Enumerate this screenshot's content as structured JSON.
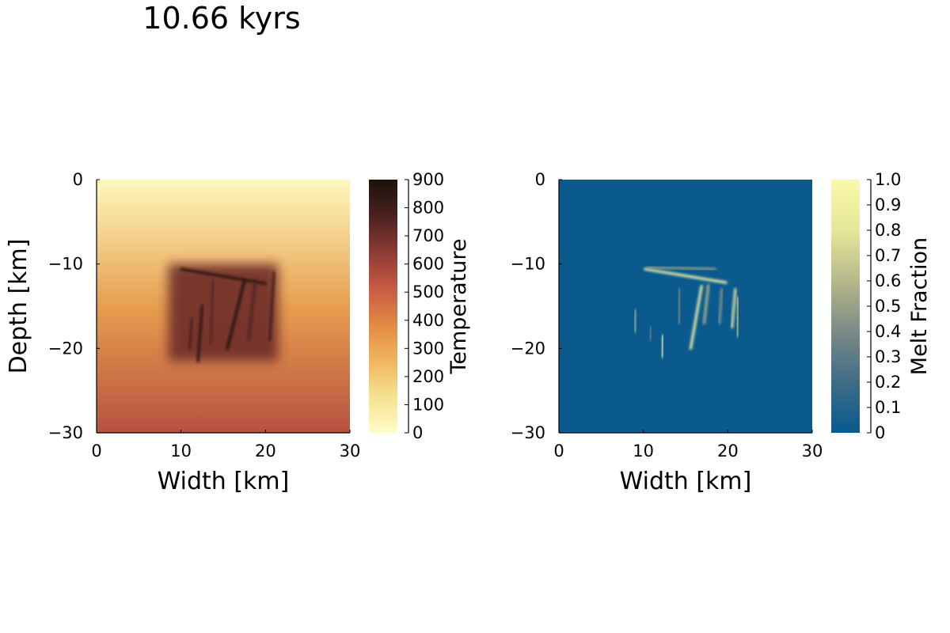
{
  "figure_title": "10.66 kyrs",
  "colors": {
    "temperature_scale": [
      "#fffdc6",
      "#f6e190",
      "#efb55c",
      "#e08a44",
      "#c85a44",
      "#8c3b34",
      "#4a2121",
      "#1b1209"
    ],
    "melt_scale": [
      "#0a5a8e",
      "#3f6c86",
      "#7b8a86",
      "#b5b88a",
      "#e6e79a",
      "#fbf8a8"
    ],
    "melt_background": "#0a5a8e"
  },
  "chart_data": [
    {
      "type": "heatmap",
      "name": "temperature",
      "xlabel": "Width [km]",
      "ylabel": "Depth [km]",
      "xlim": [
        0,
        30
      ],
      "ylim": [
        -30,
        0
      ],
      "xticks": [
        0,
        10,
        20,
        30
      ],
      "xtick_labels": [
        "0",
        "10",
        "20",
        "30"
      ],
      "yticks": [
        0,
        -10,
        -20,
        -30
      ],
      "ytick_labels": [
        "0",
        "−10",
        "−20",
        "−30"
      ],
      "colorbar": {
        "label": "Temperature",
        "range": [
          0,
          900
        ],
        "ticks": [
          0,
          100,
          200,
          300,
          400,
          500,
          600,
          700,
          800,
          900
        ],
        "tick_labels": [
          "0",
          "100",
          "200",
          "300",
          "400",
          "500",
          "600",
          "700",
          "800",
          "900"
        ]
      },
      "background_gradient": [
        {
          "depth": 0,
          "value": 20
        },
        {
          "depth": -30,
          "value": 550
        }
      ],
      "hot_region": {
        "x": [
          8.5,
          21.5
        ],
        "depth": [
          -10,
          -21.5
        ],
        "value": 700
      },
      "dikes": [
        {
          "x1": 9.5,
          "d1": -10.3,
          "x2": 20.5,
          "d2": -10.3,
          "value": 820
        },
        {
          "x1": 10,
          "d1": -10.6,
          "x2": 20,
          "d2": -12.3,
          "value": 870
        },
        {
          "x1": 15.5,
          "d1": -20,
          "x2": 17.5,
          "d2": -12,
          "value": 900
        },
        {
          "x1": 12,
          "d1": -21.5,
          "x2": 12.5,
          "d2": -15,
          "value": 850
        },
        {
          "x1": 11,
          "d1": -20,
          "x2": 11.3,
          "d2": -16.5,
          "value": 780
        },
        {
          "x1": 20.5,
          "d1": -19,
          "x2": 21,
          "d2": -11,
          "value": 800
        },
        {
          "x1": 18,
          "d1": -19,
          "x2": 18.8,
          "d2": -12,
          "value": 760
        },
        {
          "x1": 13.5,
          "d1": -19.5,
          "x2": 13.8,
          "d2": -12,
          "value": 740
        }
      ]
    },
    {
      "type": "heatmap",
      "name": "melt_fraction",
      "xlabel": "Width [km]",
      "ylabel": "",
      "xlim": [
        0,
        30
      ],
      "ylim": [
        -30,
        0
      ],
      "xticks": [
        0,
        10,
        20,
        30
      ],
      "xtick_labels": [
        "0",
        "10",
        "20",
        "30"
      ],
      "yticks": [
        0,
        -10,
        -20,
        -30
      ],
      "ytick_labels": [
        "0",
        "−10",
        "−20",
        "−30"
      ],
      "colorbar": {
        "label": "Melt Fraction",
        "range": [
          0,
          1
        ],
        "ticks": [
          0,
          0.1,
          0.2,
          0.3,
          0.4,
          0.5,
          0.6,
          0.7,
          0.8,
          0.9,
          1.0
        ],
        "tick_labels": [
          "0",
          "0.1",
          "0.2",
          "0.3",
          "0.4",
          "0.5",
          "0.6",
          "0.7",
          "0.8",
          "0.9",
          "1.0"
        ]
      },
      "streaks": [
        {
          "x1": 10.2,
          "d1": -10.6,
          "x2": 19.8,
          "d2": -12.2,
          "value": 1.0
        },
        {
          "x1": 10.5,
          "d1": -10.4,
          "x2": 18.5,
          "d2": -10.6,
          "value": 0.5
        },
        {
          "x1": 15.6,
          "d1": -20,
          "x2": 16.9,
          "d2": -12.6,
          "value": 1.0
        },
        {
          "x1": 17.2,
          "d1": -17,
          "x2": 17.7,
          "d2": -12.5,
          "value": 0.6
        },
        {
          "x1": 12.2,
          "d1": -21,
          "x2": 12.3,
          "d2": -18.5,
          "value": 0.9
        },
        {
          "x1": 9.0,
          "d1": -18,
          "x2": 9.1,
          "d2": -15.5,
          "value": 0.55
        },
        {
          "x1": 20.5,
          "d1": -17.5,
          "x2": 20.9,
          "d2": -13,
          "value": 0.85
        },
        {
          "x1": 21.1,
          "d1": -18.5,
          "x2": 21.2,
          "d2": -14,
          "value": 0.7
        },
        {
          "x1": 19,
          "d1": -17,
          "x2": 19.3,
          "d2": -13,
          "value": 0.45
        },
        {
          "x1": 10.8,
          "d1": -19,
          "x2": 10.9,
          "d2": -17.5,
          "value": 0.35
        },
        {
          "x1": 14.2,
          "d1": -17,
          "x2": 14.3,
          "d2": -13,
          "value": 0.4
        }
      ]
    }
  ]
}
